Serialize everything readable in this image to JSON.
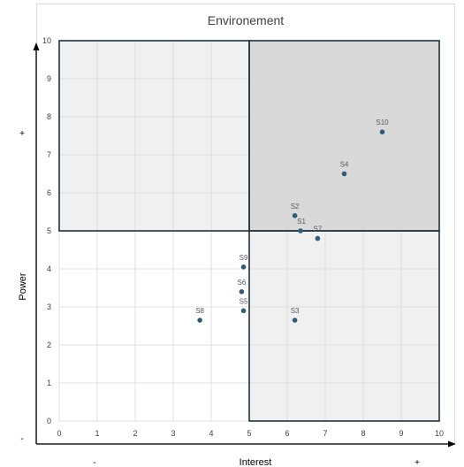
{
  "chart_data": {
    "type": "scatter",
    "title": "Environement",
    "xlabel": "Interest",
    "ylabel": "Power",
    "xlim": [
      0,
      10
    ],
    "ylim": [
      0,
      10
    ],
    "x_ticks": [
      0,
      1,
      2,
      3,
      4,
      5,
      6,
      7,
      8,
      9,
      10
    ],
    "y_ticks": [
      0,
      1,
      2,
      3,
      4,
      5,
      6,
      7,
      8,
      9,
      10
    ],
    "grid": true,
    "quadrant_split": {
      "x": 5,
      "y": 5
    },
    "axis_signs": {
      "x_low": "-",
      "x_high": "+",
      "y_low": "-",
      "y_high": "+"
    },
    "points": [
      {
        "label": "S1",
        "x": 6.35,
        "y": 5.0
      },
      {
        "label": "S2",
        "x": 6.2,
        "y": 5.4
      },
      {
        "label": "S3",
        "x": 6.2,
        "y": 2.65
      },
      {
        "label": "S4",
        "x": 7.5,
        "y": 6.5
      },
      {
        "label": "S5",
        "x": 4.85,
        "y": 2.9
      },
      {
        "label": "S6",
        "x": 4.8,
        "y": 3.4
      },
      {
        "label": "S7",
        "x": 6.8,
        "y": 4.8
      },
      {
        "label": "S8",
        "x": 3.7,
        "y": 2.65
      },
      {
        "label": "S9",
        "x": 4.85,
        "y": 4.05
      },
      {
        "label": "S10",
        "x": 8.5,
        "y": 7.6
      }
    ],
    "colors": {
      "point": "#2e5d7a",
      "quadrant_top_left": "#f0f0f0",
      "quadrant_top_right": "#d9d9d9",
      "quadrant_bottom_left": "#ffffff",
      "quadrant_bottom_right": "#f0f0f0",
      "quadrant_border": "#1f3340",
      "grid": "#d9d9d9"
    }
  }
}
